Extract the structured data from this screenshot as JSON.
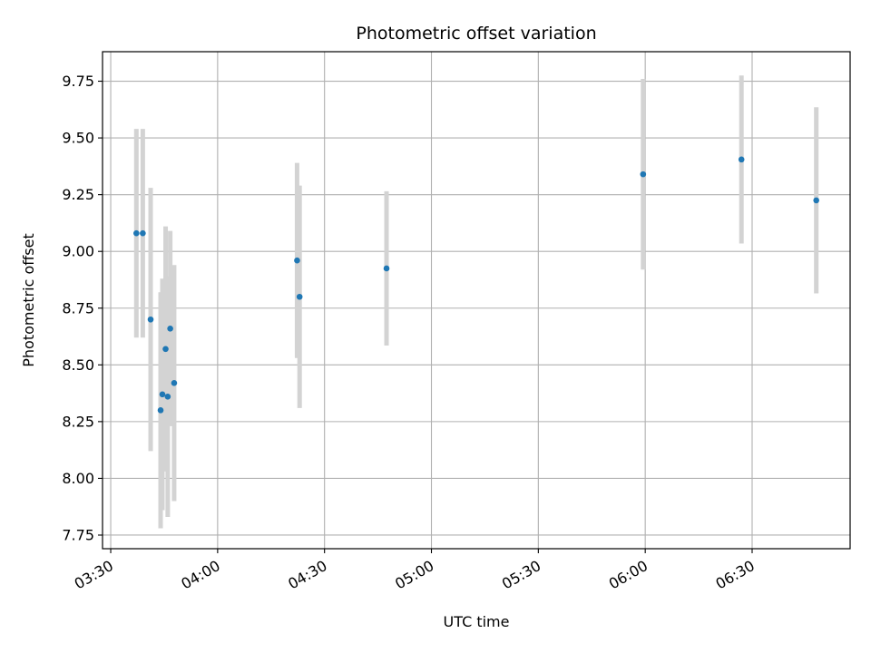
{
  "chart_data": {
    "type": "scatter",
    "title": "Photometric offset variation",
    "xlabel": "UTC time",
    "ylabel": "Photometric offset",
    "x_ticks": [
      "03:30",
      "04:00",
      "04:30",
      "05:00",
      "05:30",
      "06:00",
      "06:30"
    ],
    "x_tick_minutes": [
      210,
      240,
      270,
      300,
      330,
      360,
      390
    ],
    "y_ticks": [
      "7.75",
      "8.00",
      "8.25",
      "8.50",
      "8.75",
      "9.00",
      "9.25",
      "9.50",
      "9.75"
    ],
    "xlim_minutes": [
      207.7,
      417.5
    ],
    "ylim": [
      7.69,
      9.88
    ],
    "grid": true,
    "marker_color": "#1f77b4",
    "errorbar_color": "#d3d3d3",
    "points": [
      {
        "t_min": 217.2,
        "y": 9.08,
        "err": 0.46
      },
      {
        "t_min": 219.0,
        "y": 9.08,
        "err": 0.46
      },
      {
        "t_min": 221.2,
        "y": 8.7,
        "err": 0.58
      },
      {
        "t_min": 224.0,
        "y": 8.3,
        "err": 0.52
      },
      {
        "t_min": 224.5,
        "y": 8.37,
        "err": 0.51
      },
      {
        "t_min": 225.4,
        "y": 8.57,
        "err": 0.54
      },
      {
        "t_min": 226.0,
        "y": 8.36,
        "err": 0.53
      },
      {
        "t_min": 226.7,
        "y": 8.66,
        "err": 0.43
      },
      {
        "t_min": 227.8,
        "y": 8.42,
        "err": 0.52
      },
      {
        "t_min": 262.3,
        "y": 8.96,
        "err": 0.43
      },
      {
        "t_min": 263.0,
        "y": 8.8,
        "err": 0.49
      },
      {
        "t_min": 287.4,
        "y": 8.925,
        "err": 0.34
      },
      {
        "t_min": 359.4,
        "y": 9.34,
        "err": 0.42
      },
      {
        "t_min": 387.0,
        "y": 9.405,
        "err": 0.37
      },
      {
        "t_min": 408.0,
        "y": 9.225,
        "err": 0.41
      }
    ]
  }
}
